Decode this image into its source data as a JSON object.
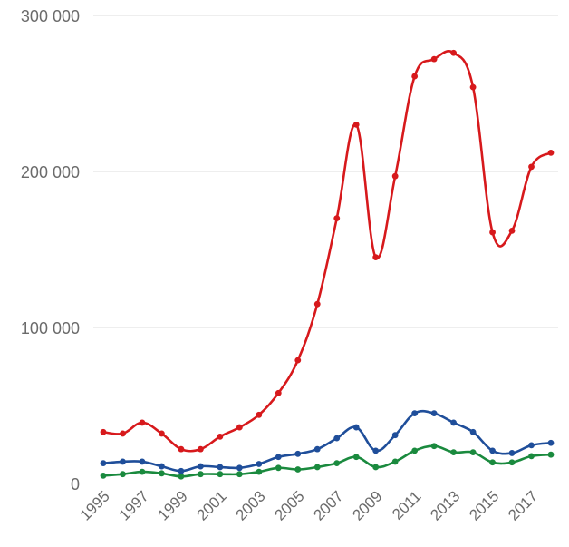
{
  "chart_data": {
    "type": "line",
    "title": "",
    "xlabel": "",
    "ylabel": "",
    "x": [
      1995,
      1996,
      1997,
      1998,
      1999,
      2000,
      2001,
      2002,
      2003,
      2004,
      2005,
      2006,
      2007,
      2008,
      2009,
      2010,
      2011,
      2012,
      2013,
      2014,
      2015,
      2016,
      2017,
      2018
    ],
    "ylim": [
      0,
      300000
    ],
    "yticks": [
      0,
      100000,
      200000,
      300000
    ],
    "ytick_labels": [
      "0",
      "100 000",
      "200 000",
      "300 000"
    ],
    "xtick_labels": [
      "1995",
      "1997",
      "1999",
      "2001",
      "2003",
      "2005",
      "2007",
      "2009",
      "2011",
      "2013",
      "2015",
      "2017"
    ],
    "grid": true,
    "legend": "none",
    "series": [
      {
        "color": "#d7191c",
        "values": [
          33000,
          32000,
          39000,
          32000,
          22000,
          22000,
          30000,
          36000,
          44000,
          58000,
          79000,
          115000,
          170000,
          230000,
          145000,
          197000,
          261000,
          272000,
          276000,
          254000,
          161000,
          162000,
          203000,
          212000
        ]
      },
      {
        "color": "#1f4e9a",
        "values": [
          13000,
          14000,
          14000,
          11000,
          8000,
          11000,
          10500,
          10000,
          12500,
          17000,
          19000,
          22000,
          29000,
          36000,
          21000,
          31000,
          45000,
          45000,
          39000,
          33000,
          21000,
          19500,
          24500,
          26000
        ]
      },
      {
        "color": "#1a8a3e",
        "values": [
          5000,
          6000,
          7500,
          6500,
          4500,
          6000,
          6000,
          6000,
          7500,
          10000,
          9000,
          10500,
          13000,
          17000,
          10500,
          14000,
          21000,
          24000,
          20000,
          20000,
          13500,
          13500,
          17500,
          18500
        ]
      }
    ]
  }
}
